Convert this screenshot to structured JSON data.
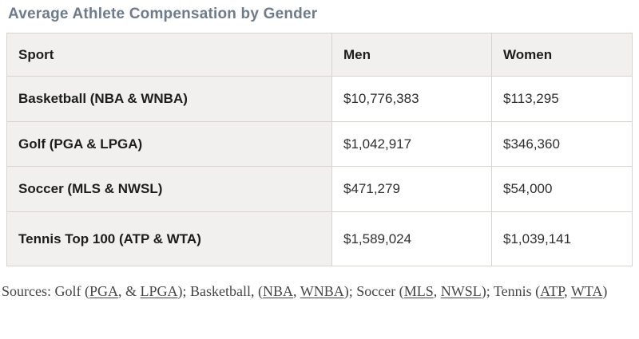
{
  "page": {
    "title": "Average Athlete Compensation by Gender"
  },
  "table": {
    "columns": [
      "Sport",
      "Men",
      "Women"
    ],
    "rows": [
      {
        "sport": "Basketball (NBA & WNBA)",
        "men": "$10,776,383",
        "women": "$113,295"
      },
      {
        "sport": "Golf (PGA & LPGA)",
        "men": "$1,042,917",
        "women": "$346,360"
      },
      {
        "sport": "Soccer (MLS & NWSL)",
        "men": "$471,279",
        "women": "$54,000"
      },
      {
        "sport": "Tennis Top 100 (ATP & WTA)",
        "men": "$1,589,024",
        "women": "$1,039,141"
      }
    ]
  },
  "sources": {
    "segments": [
      {
        "text": "Sources: Golf ("
      },
      {
        "text": "PGA",
        "link": true
      },
      {
        "text": ", & "
      },
      {
        "text": "LPGA",
        "link": true
      },
      {
        "text": "); Basketball, ("
      },
      {
        "text": "NBA",
        "link": true
      },
      {
        "text": ", "
      },
      {
        "text": "WNBA",
        "link": true
      },
      {
        "text": "); Soccer ("
      },
      {
        "text": "MLS",
        "link": true
      },
      {
        "text": ", "
      },
      {
        "text": "NWSL",
        "link": true
      },
      {
        "text": "); Tennis ("
      },
      {
        "text": "ATP",
        "link": true
      },
      {
        "text": ", "
      },
      {
        "text": "WTA",
        "link": true
      },
      {
        "text": ")"
      }
    ]
  },
  "colors": {
    "title_color": "#6e7b8b",
    "header_bg": "#f1f0ee",
    "border_color": "#d7d4d0",
    "label_text": "#1d1d1d",
    "value_text": "#2e2e2e",
    "sources_text": "#454545"
  },
  "chart_data": {
    "type": "table",
    "title": "Average Athlete Compensation by Gender",
    "columns": [
      "Sport",
      "Men",
      "Women"
    ],
    "rows": [
      [
        "Basketball (NBA & WNBA)",
        "$10,776,383",
        "$113,295"
      ],
      [
        "Golf (PGA & LPGA)",
        "$1,042,917",
        "$346,360"
      ],
      [
        "Soccer (MLS & NWSL)",
        "$471,279",
        "$54,000"
      ],
      [
        "Tennis Top 100 (ATP & WTA)",
        "$1,589,024",
        "$1,039,141"
      ]
    ],
    "categories": [
      "Basketball (NBA & WNBA)",
      "Golf (PGA & LPGA)",
      "Soccer (MLS & NWSL)",
      "Tennis Top 100 (ATP & WTA)"
    ],
    "series": [
      {
        "name": "Men",
        "values": [
          10776383,
          1042917,
          471279,
          1589024
        ]
      },
      {
        "name": "Women",
        "values": [
          113295,
          346360,
          54000,
          1039141
        ]
      }
    ]
  }
}
